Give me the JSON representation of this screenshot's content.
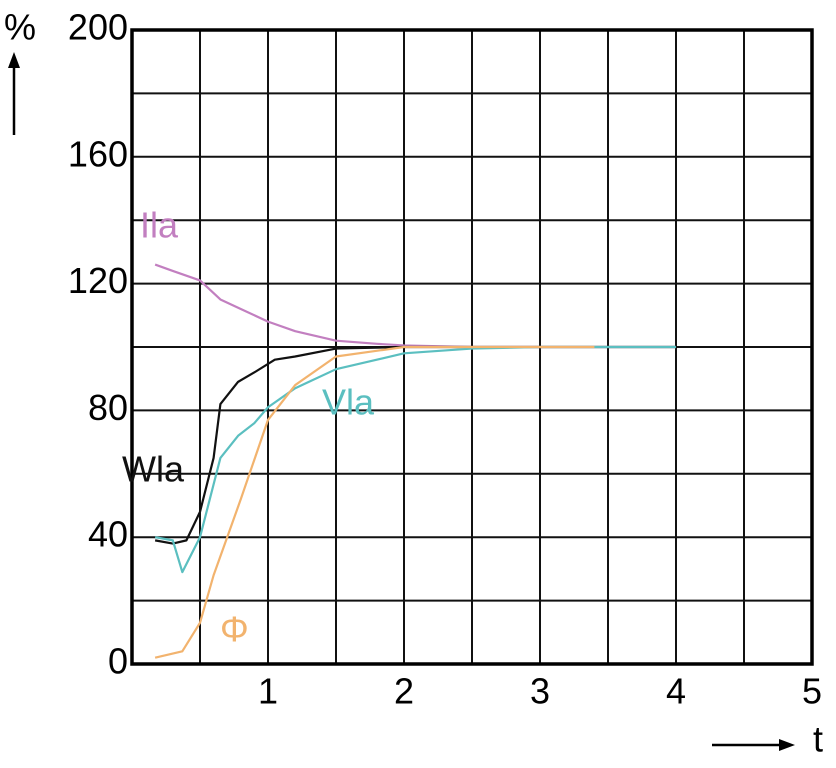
{
  "chart_data": {
    "type": "line",
    "y_label": "%",
    "x_label": "t",
    "xlim": [
      0,
      5
    ],
    "ylim": [
      0,
      200
    ],
    "xticks": [
      1,
      2,
      3,
      4,
      5
    ],
    "yticks": [
      0,
      40,
      80,
      120,
      160,
      200
    ],
    "xgrid": [
      0,
      0.5,
      1,
      1.5,
      2,
      2.5,
      3,
      3.5,
      4,
      4.5,
      5
    ],
    "ygrid": [
      0,
      20,
      40,
      60,
      80,
      100,
      120,
      140,
      160,
      180,
      200
    ],
    "series": [
      {
        "name": "Ila",
        "color": "#c27fc0",
        "x": [
          0.17,
          0.3,
          0.5,
          0.65,
          0.8,
          1.0,
          1.2,
          1.5,
          1.8,
          2.0,
          2.5,
          4.0
        ],
        "values": [
          126,
          124,
          121,
          115,
          112,
          108,
          105,
          102,
          101,
          100.5,
          100,
          100
        ]
      },
      {
        "name": "Wla",
        "color": "#111111",
        "x": [
          0.17,
          0.3,
          0.4,
          0.5,
          0.6,
          0.65,
          0.78,
          0.9,
          1.05,
          1.2,
          1.5,
          2.0,
          4.0
        ],
        "values": [
          39,
          38,
          39,
          48,
          65,
          82,
          89,
          92,
          96,
          97,
          99.5,
          100,
          100
        ]
      },
      {
        "name": "Vla",
        "color": "#5bbfc0",
        "x": [
          0.17,
          0.3,
          0.37,
          0.5,
          0.65,
          0.78,
          0.9,
          1.0,
          1.2,
          1.5,
          1.8,
          2.0,
          2.5,
          3.0,
          4.0
        ],
        "values": [
          40,
          39,
          29,
          40,
          65,
          72,
          76,
          81,
          87,
          93,
          96,
          98,
          99.5,
          100,
          100
        ]
      },
      {
        "name": "Φ",
        "color": "#f2b36e",
        "x": [
          0.17,
          0.37,
          0.5,
          0.6,
          0.7,
          0.8,
          1.0,
          1.2,
          1.5,
          2.0,
          3.4
        ],
        "values": [
          2,
          4,
          13,
          28,
          40,
          52,
          77,
          88,
          97,
          100,
          100
        ]
      }
    ]
  }
}
